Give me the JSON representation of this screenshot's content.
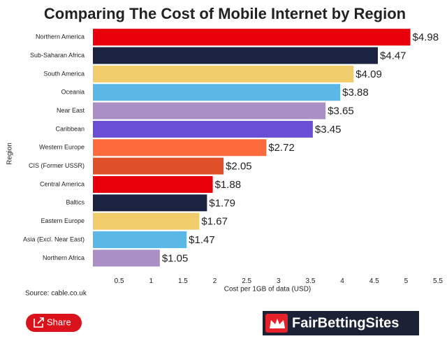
{
  "chart_data": {
    "type": "bar",
    "orientation": "horizontal",
    "title": "Comparing The Cost of Mobile Internet by Region",
    "ylabel": "Region",
    "xlabel": "Cost per 1GB of data (USD)",
    "categories": [
      "Northern America",
      "Sub-Saharan Africa",
      "South America",
      "Oceania",
      "Near East",
      "Caribbean",
      "Western Europe",
      "CIS (Former USSR)",
      "Central America",
      "Baltics",
      "Eastern Europe",
      "Asia (Excl. Near East)",
      "Northern Africa"
    ],
    "values": [
      4.98,
      4.47,
      4.09,
      3.88,
      3.65,
      3.45,
      2.72,
      2.05,
      1.88,
      1.79,
      1.67,
      1.47,
      1.05
    ],
    "value_labels": [
      "$4.98",
      "$4.47",
      "$4.09",
      "$3.88",
      "$3.65",
      "$3.45",
      "$2.72",
      "$2.05",
      "$1.88",
      "$1.79",
      "$1.67",
      "$1.47",
      "$1.05"
    ],
    "colors": [
      "#e8000b",
      "#1c2340",
      "#f0cc6a",
      "#5bb8e6",
      "#a98fc4",
      "#6a4fd6",
      "#ff6a3d",
      "#e05028",
      "#e8000b",
      "#1c2340",
      "#f0cc6a",
      "#5bb8e6",
      "#a98fc4"
    ],
    "xlim": [
      0,
      5.5
    ],
    "xticks": [
      0.5,
      1,
      1.5,
      2,
      2.5,
      3,
      3.5,
      4,
      4.5,
      5,
      5.5
    ],
    "grid": false
  },
  "footer": {
    "source": "Source: cable.co.uk",
    "share": "Share",
    "brand": "FairBettingSites"
  }
}
